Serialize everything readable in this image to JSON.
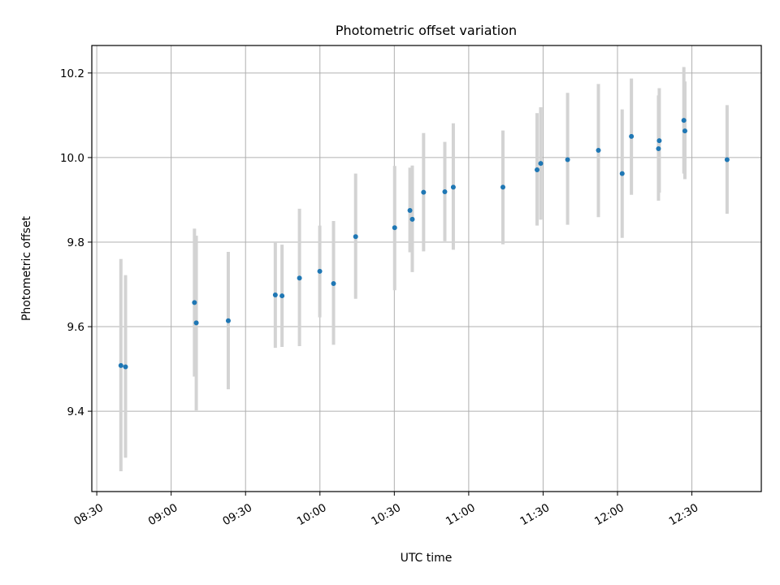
{
  "chart_data": {
    "type": "scatter",
    "title": "Photometric offset variation",
    "xlabel": "UTC time",
    "ylabel": "Photometric offset",
    "grid": true,
    "legend": "none",
    "colors": {
      "point": "#1f77b4",
      "errorbar": "#d3d3d3",
      "grid": "#b0b0b0"
    },
    "xlim": [
      "08:28",
      "12:58"
    ],
    "ylim": [
      9.21,
      10.265
    ],
    "xticks": [
      "08:30",
      "09:00",
      "09:30",
      "10:00",
      "10:30",
      "11:00",
      "11:30",
      "12:00",
      "12:30"
    ],
    "yticks": [
      9.4,
      9.6,
      9.8,
      10.0,
      10.2
    ],
    "series": [
      {
        "points": [
          {
            "x": "08:39:44",
            "y": 9.508,
            "ylow": 9.258,
            "yhigh": 9.76
          },
          {
            "x": "08:41:36",
            "y": 9.505,
            "ylow": 9.29,
            "yhigh": 9.722
          },
          {
            "x": "09:09:24",
            "y": 9.657,
            "ylow": 9.482,
            "yhigh": 9.832
          },
          {
            "x": "09:10:08",
            "y": 9.609,
            "ylow": 9.402,
            "yhigh": 9.815
          },
          {
            "x": "09:23:02",
            "y": 9.614,
            "ylow": 9.452,
            "yhigh": 9.777
          },
          {
            "x": "09:42:00",
            "y": 9.675,
            "ylow": 9.55,
            "yhigh": 9.8
          },
          {
            "x": "09:44:43",
            "y": 9.673,
            "ylow": 9.552,
            "yhigh": 9.794
          },
          {
            "x": "09:51:45",
            "y": 9.715,
            "ylow": 9.554,
            "yhigh": 9.879
          },
          {
            "x": "09:59:56",
            "y": 9.731,
            "ylow": 9.622,
            "yhigh": 9.839
          },
          {
            "x": "10:05:29",
            "y": 9.702,
            "ylow": 9.557,
            "yhigh": 9.85
          },
          {
            "x": "10:14:24",
            "y": 9.813,
            "ylow": 9.666,
            "yhigh": 9.962
          },
          {
            "x": "10:30:08",
            "y": 9.834,
            "ylow": 9.686,
            "yhigh": 9.98
          },
          {
            "x": "10:36:18",
            "y": 9.875,
            "ylow": 9.776,
            "yhigh": 9.976
          },
          {
            "x": "10:37:15",
            "y": 9.854,
            "ylow": 9.729,
            "yhigh": 9.981
          },
          {
            "x": "10:41:48",
            "y": 9.918,
            "ylow": 9.778,
            "yhigh": 10.058
          },
          {
            "x": "10:50:22",
            "y": 9.919,
            "ylow": 9.802,
            "yhigh": 10.037
          },
          {
            "x": "10:53:47",
            "y": 9.93,
            "ylow": 9.782,
            "yhigh": 10.081
          },
          {
            "x": "11:13:48",
            "y": 9.93,
            "ylow": 9.795,
            "yhigh": 10.064
          },
          {
            "x": "11:27:34",
            "y": 9.971,
            "ylow": 9.839,
            "yhigh": 10.105
          },
          {
            "x": "11:29:02",
            "y": 9.986,
            "ylow": 9.853,
            "yhigh": 10.119
          },
          {
            "x": "11:39:53",
            "y": 9.995,
            "ylow": 9.841,
            "yhigh": 10.153
          },
          {
            "x": "11:52:18",
            "y": 10.017,
            "ylow": 9.859,
            "yhigh": 10.174
          },
          {
            "x": "12:01:53",
            "y": 9.962,
            "ylow": 9.81,
            "yhigh": 10.114
          },
          {
            "x": "12:05:37",
            "y": 10.05,
            "ylow": 9.912,
            "yhigh": 10.187
          },
          {
            "x": "12:16:32",
            "y": 10.021,
            "ylow": 9.898,
            "yhigh": 10.147
          },
          {
            "x": "12:16:51",
            "y": 10.04,
            "ylow": 9.917,
            "yhigh": 10.164
          },
          {
            "x": "12:26:46",
            "y": 10.088,
            "ylow": 9.962,
            "yhigh": 10.214
          },
          {
            "x": "12:27:11",
            "y": 10.063,
            "ylow": 9.949,
            "yhigh": 10.18
          },
          {
            "x": "12:44:12",
            "y": 9.995,
            "ylow": 9.867,
            "yhigh": 10.124
          }
        ]
      }
    ]
  }
}
